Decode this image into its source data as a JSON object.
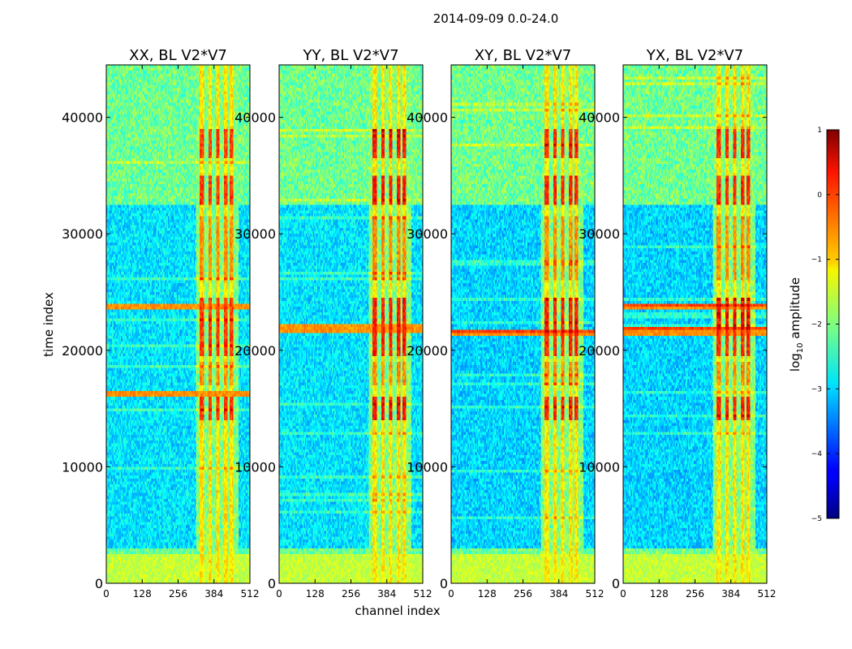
{
  "chart_data": {
    "type": "heatmap",
    "suptitle": "2014-09-09 0.0-24.0",
    "xlabel": "channel index",
    "ylabel": "time index",
    "xlim": [
      0,
      512
    ],
    "ylim": [
      0,
      44500
    ],
    "xticks": [
      0,
      128,
      256,
      384,
      512
    ],
    "yticks": [
      0,
      10000,
      20000,
      30000,
      40000
    ],
    "colorbar": {
      "label_prefix": "log",
      "label_sub": "10",
      "label_suffix": " amplitude",
      "range": [
        -5,
        1
      ],
      "ticks": [
        1,
        0,
        -1,
        -2,
        -3,
        -4,
        -5
      ],
      "tick_labels": [
        "1",
        "0",
        "−1",
        "−2",
        "−3",
        "−4",
        "−5"
      ],
      "colormap": "jet"
    },
    "panels": [
      {
        "title": "XX, BL V2*V7",
        "quiet_upper": [
          {
            "from": 2800,
            "to": 32500,
            "level": -2.9
          }
        ],
        "strong_horizontal": [
          23700,
          16200
        ],
        "peak": -0.1
      },
      {
        "title": "YY, BL V2*V7",
        "quiet_upper": [
          {
            "from": 2800,
            "to": 32500,
            "level": -2.9
          }
        ],
        "strong_horizontal": [
          21900
        ],
        "peak": 0.1
      },
      {
        "title": "XY, BL V2*V7",
        "quiet_upper": [
          {
            "from": 2800,
            "to": 32500,
            "level": -3.0
          }
        ],
        "strong_horizontal": [
          21500
        ],
        "peak": 0.0
      },
      {
        "title": "YX, BL V2*V7",
        "quiet_upper": [
          {
            "from": 2800,
            "to": 32500,
            "level": -3.0
          }
        ],
        "strong_horizontal": [
          23700,
          21600
        ],
        "peak": 0.0
      }
    ]
  }
}
